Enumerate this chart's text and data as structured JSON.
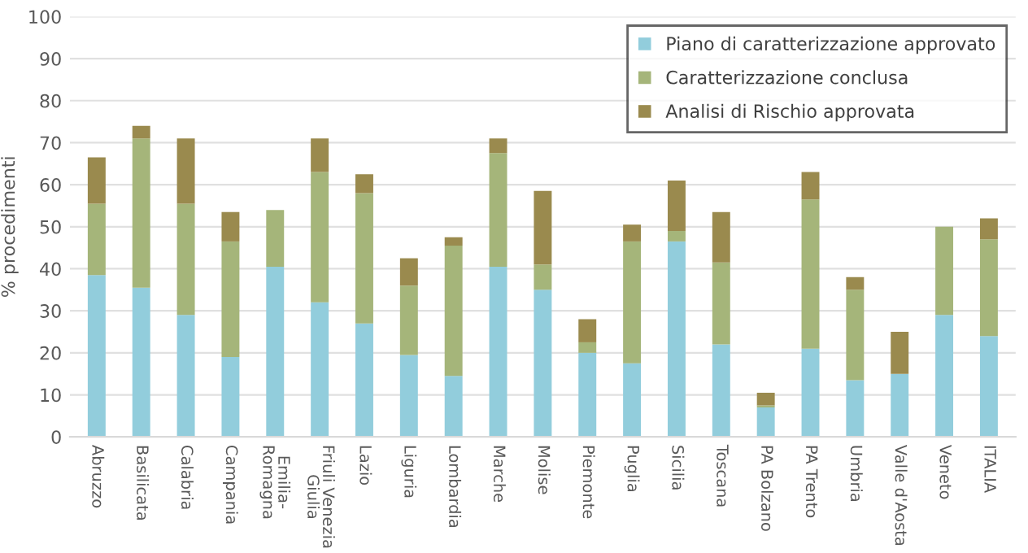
{
  "chart_data": {
    "type": "bar",
    "stacked": true,
    "ylabel": "% procedimenti",
    "categories": [
      "Abruzzo",
      "Basilicata",
      "Calabria",
      "Campania",
      "Emilia-\nRomagna",
      "Friuli Venezia\nGiulia",
      "Lazio",
      "Liguria",
      "Lombardia",
      "Marche",
      "Molise",
      "Piemonte",
      "Puglia",
      "Sicilia",
      "Toscana",
      "PA Bolzano",
      "PA Trento",
      "Umbria",
      "Valle d'Aosta",
      "Veneto",
      "ITALIA"
    ],
    "series": [
      {
        "name": "Piano di caratterizzazione approvato",
        "color": "#92cddc",
        "values": [
          38.5,
          35.5,
          29,
          19,
          40.5,
          32,
          27,
          19.5,
          14.5,
          40.5,
          35,
          20,
          17.5,
          46.5,
          22,
          7,
          21,
          13.5,
          15,
          29,
          24
        ]
      },
      {
        "name": "Caratterizzazione conclusa",
        "color": "#a5b57a",
        "values": [
          17,
          35.5,
          26.5,
          27.5,
          13.5,
          31,
          31,
          16.5,
          31,
          27,
          6,
          2.5,
          29,
          2.5,
          19.5,
          0.5,
          35.5,
          21.5,
          0,
          21,
          23
        ]
      },
      {
        "name": "Analisi di Rischio approvata",
        "color": "#9a8a4e",
        "values": [
          11,
          3,
          15.5,
          7,
          0,
          8,
          4.5,
          6.5,
          2,
          3.5,
          17.5,
          5.5,
          4,
          12,
          12,
          3,
          6.5,
          3,
          10,
          0,
          5
        ]
      }
    ],
    "ylim": [
      0,
      100
    ],
    "yticks": [
      0,
      10,
      20,
      30,
      40,
      50,
      60,
      70,
      80,
      90,
      100
    ],
    "grid": "y",
    "legend": "top right"
  }
}
